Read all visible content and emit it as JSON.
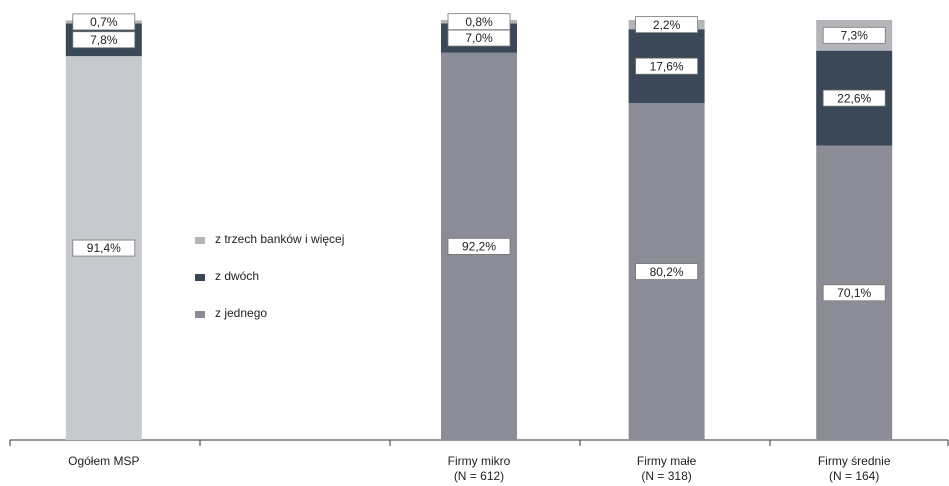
{
  "chart_data": {
    "type": "stacked-bar",
    "categories": [
      "Ogółem MSP",
      null,
      "Firmy mikro\n(N = 612)",
      "Firmy małe\n(N = 318)",
      "Firmy średnie\n(N = 164)"
    ],
    "series": [
      {
        "name": "z jednego",
        "color": "#8b8c96",
        "colors": [
          "#c6c9cd",
          null,
          "#8b8c96",
          "#8b8c96",
          "#8b8c96"
        ],
        "values": [
          91.4,
          null,
          92.2,
          80.2,
          70.1
        ],
        "value_labels": [
          "91,4%",
          null,
          "92,2%",
          "80,2%",
          "70,1%"
        ]
      },
      {
        "name": "z dwóch",
        "color": "#3b4858",
        "values": [
          7.8,
          null,
          7.0,
          17.6,
          22.6
        ],
        "value_labels": [
          "7,8%",
          null,
          "7,0%",
          "17,6%",
          "22,6%"
        ]
      },
      {
        "name": "z trzech banków i więcej",
        "color": "#b3b5b9",
        "values": [
          0.7,
          null,
          0.8,
          2.2,
          7.3
        ],
        "value_labels": [
          "0,7%",
          null,
          "0,8%",
          "2,2%",
          "7,3%"
        ]
      }
    ],
    "legend_order": "reverse",
    "ylim": [
      0,
      100
    ]
  }
}
